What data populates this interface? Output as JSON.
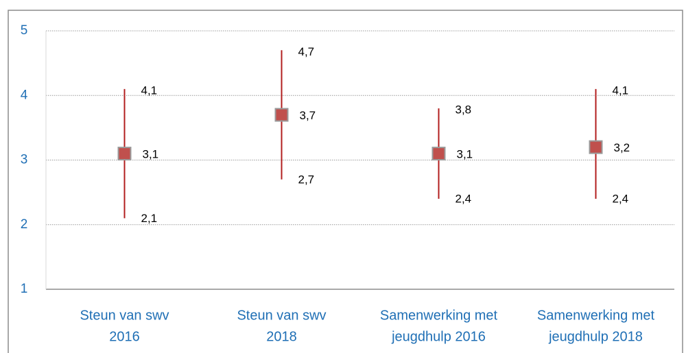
{
  "chart_data": {
    "type": "errorbar",
    "categories": [
      [
        "Steun van swv",
        "2016"
      ],
      [
        "Steun van swv",
        "2018"
      ],
      [
        "Samenwerking met",
        "jeugdhulp 2016"
      ],
      [
        "Samenwerking met",
        "jeugdhulp 2018"
      ]
    ],
    "values": [
      3.1,
      3.7,
      3.1,
      3.2
    ],
    "value_labels": [
      "3,1",
      "3,7",
      "3,1",
      "3,2"
    ],
    "high": [
      4.1,
      4.7,
      3.8,
      4.1
    ],
    "high_labels": [
      "4,1",
      "4,7",
      "3,8",
      "4,1"
    ],
    "low": [
      2.1,
      2.7,
      2.4,
      2.4
    ],
    "low_labels": [
      "2,1",
      "2,7",
      "2,4",
      "2,4"
    ],
    "color": "#c0504d",
    "bar_color": "#b21e1e",
    "ylim": [
      1,
      5
    ],
    "yticks": [
      1,
      2,
      3,
      4,
      5
    ],
    "grid": true
  }
}
